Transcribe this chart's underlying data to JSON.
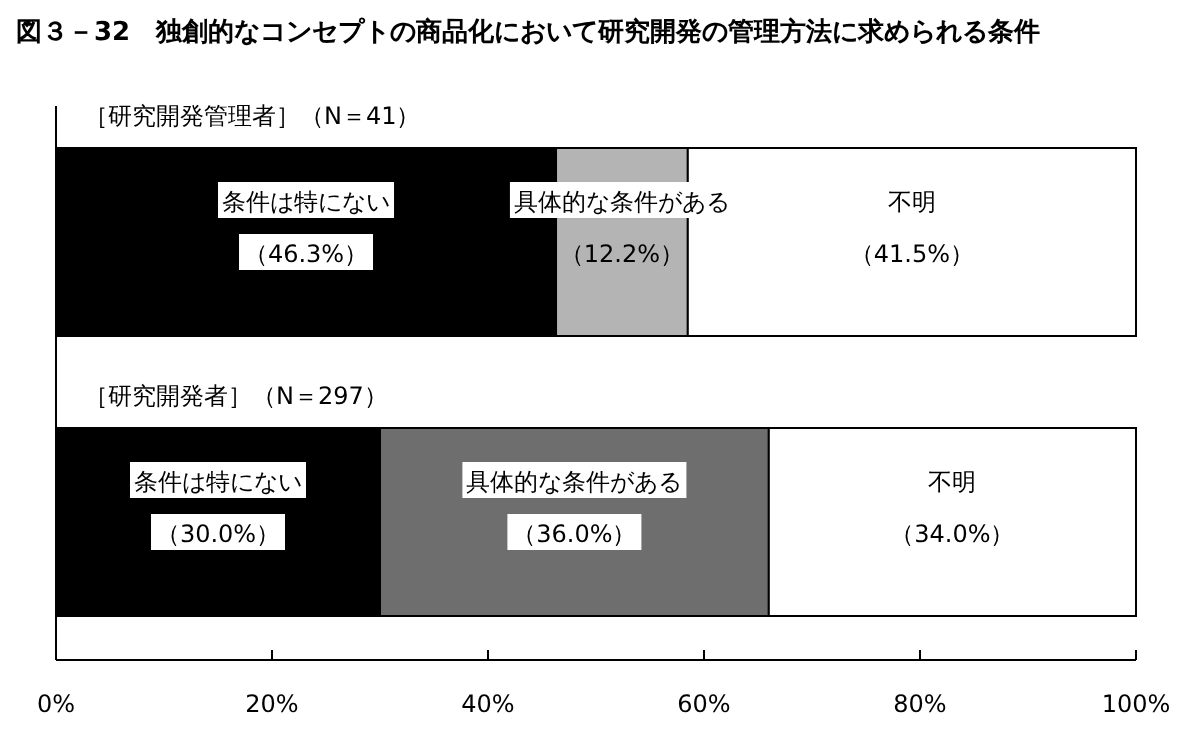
{
  "chart_data": {
    "type": "bar",
    "orientation": "horizontal",
    "stacked": true,
    "title": "図３－32　独創的なコンセプトの商品化において研究開発の管理方法に求められる条件",
    "categories": [
      "［研究開発管理者］（N＝41）",
      "［研究開発者］（N＝297）"
    ],
    "series": [
      {
        "name": "条件は特にない",
        "color": "#000000",
        "values": [
          46.3,
          30.0
        ],
        "value_labels": [
          "（46.3%）",
          "（30.0%）"
        ]
      },
      {
        "name": "具体的な条件がある",
        "colors": [
          "#b4b4b4",
          "#6e6e6e"
        ],
        "values": [
          12.2,
          36.0
        ],
        "value_labels": [
          "（12.2%）",
          "（36.0%）"
        ]
      },
      {
        "name": "不明",
        "color": "#ffffff",
        "values": [
          41.5,
          34.0
        ],
        "value_labels": [
          "（41.5%）",
          "（34.0%）"
        ]
      }
    ],
    "xlim": [
      0,
      100
    ],
    "xticks": [
      {
        "value": 0,
        "label": "0%"
      },
      {
        "value": 20,
        "label": "20%"
      },
      {
        "value": 40,
        "label": "40%"
      },
      {
        "value": 60,
        "label": "60%"
      },
      {
        "value": 80,
        "label": "80%"
      },
      {
        "value": 100,
        "label": "100%"
      }
    ],
    "grid": false
  }
}
